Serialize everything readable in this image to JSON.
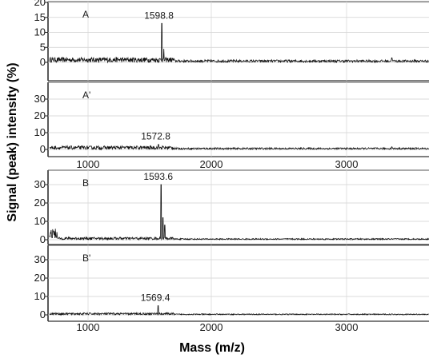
{
  "chart_data": {
    "type": "line",
    "xlabel": "Mass (m/z)",
    "ylabel": "Signal (peak) intensity (%)",
    "x_ticks": [
      "1000",
      "2000",
      "3000"
    ],
    "xlim": [
      700,
      3600
    ],
    "grid": true,
    "panels": [
      {
        "label": "A",
        "ylim": [
          0,
          20
        ],
        "y_ticks": [
          "0",
          "5",
          "10",
          "15",
          "20"
        ],
        "peak": {
          "mass": 1598.8,
          "height": 13,
          "annotation": "1598.8"
        },
        "secondary_peaks": [
          {
            "mass": 1615,
            "height": 4.5
          },
          {
            "mass": 3330,
            "height": 1.5
          }
        ],
        "noise_level": 1.2
      },
      {
        "label": "A'",
        "ylim": [
          0,
          40
        ],
        "y_ticks": [
          "0",
          "10",
          "20",
          "30"
        ],
        "peak": {
          "mass": 1572.8,
          "height": 3,
          "annotation": "1572.8"
        },
        "secondary_peaks": [
          {
            "mass": 3330,
            "height": 1.5
          }
        ],
        "noise_level": 1.5
      },
      {
        "label": "B",
        "ylim": [
          0,
          35
        ],
        "y_ticks": [
          "0",
          "10",
          "20",
          "30"
        ],
        "peak": {
          "mass": 1593.6,
          "height": 30,
          "annotation": "1593.6"
        },
        "secondary_peaks": [
          {
            "mass": 1608,
            "height": 12
          },
          {
            "mass": 1622,
            "height": 8
          }
        ],
        "noise_level": 1.0
      },
      {
        "label": "B'",
        "ylim": [
          0,
          35
        ],
        "y_ticks": [
          "0",
          "10",
          "20",
          "30"
        ],
        "peak": {
          "mass": 1569.4,
          "height": 5,
          "annotation": "1569.4"
        },
        "secondary_peaks": [],
        "noise_level": 0.8
      }
    ]
  }
}
